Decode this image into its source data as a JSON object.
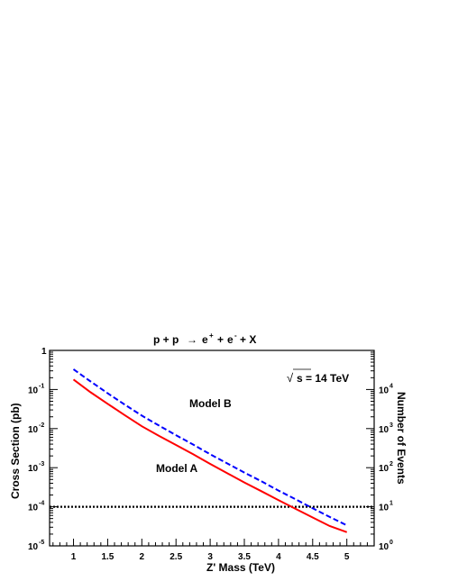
{
  "chart_data": {
    "type": "line",
    "title_parts": {
      "lhs": "p + p",
      "arrow": "→",
      "e1": "e",
      "e1_sup": "+",
      "plus1": "+",
      "e2": "e",
      "e2_sup": "-",
      "rhs": "+ X"
    },
    "annotation": {
      "sqrt": "√",
      "text": "s = 14 TeV"
    },
    "xlabel": "Z'  Mass (TeV)",
    "ylabel": "Cross Section (pb)",
    "y2label": "Number of Events",
    "xlim": [
      0.65,
      5.4
    ],
    "ylim": [
      1e-05,
      1
    ],
    "yscale": "log",
    "x_ticks": [
      "1",
      "1.5",
      "2",
      "2.5",
      "3",
      "3.5",
      "4",
      "4.5",
      "5"
    ],
    "y_ticks_left": [
      {
        "base": "10",
        "exp": "-5"
      },
      {
        "base": "10",
        "exp": "-4"
      },
      {
        "base": "10",
        "exp": "-3"
      },
      {
        "base": "10",
        "exp": "-2"
      },
      {
        "base": "10",
        "exp": "-1"
      },
      {
        "base": "1",
        "exp": ""
      }
    ],
    "y_ticks_right": [
      {
        "base": "10",
        "exp": "0"
      },
      {
        "base": "10",
        "exp": "1"
      },
      {
        "base": "10",
        "exp": "2"
      },
      {
        "base": "10",
        "exp": "3"
      },
      {
        "base": "10",
        "exp": "4"
      }
    ],
    "series": [
      {
        "name": "Model A",
        "color": "#ff0000",
        "style": "solid",
        "x": [
          1.0,
          1.25,
          1.5,
          1.75,
          2.0,
          2.25,
          2.5,
          2.75,
          3.0,
          3.25,
          3.5,
          3.75,
          4.0,
          4.25,
          4.5,
          4.75,
          5.0
        ],
        "y": [
          0.18,
          0.085,
          0.043,
          0.022,
          0.0115,
          0.0065,
          0.0038,
          0.0022,
          0.00125,
          0.00072,
          0.00042,
          0.00025,
          0.000148,
          8.85e-05,
          5.32e-05,
          3.21e-05,
          2.24e-05
        ]
      },
      {
        "name": "Model B",
        "color": "#0000ff",
        "style": "dashed",
        "x": [
          1.0,
          1.25,
          1.5,
          1.75,
          2.0,
          2.25,
          2.5,
          2.75,
          3.0,
          3.25,
          3.5,
          3.75,
          4.0,
          4.25,
          4.5,
          4.75,
          5.0
        ],
        "y": [
          0.33,
          0.16,
          0.08,
          0.041,
          0.0215,
          0.012,
          0.0068,
          0.0039,
          0.0022,
          0.00128,
          0.00075,
          0.00045,
          0.00026,
          0.000155,
          9.2e-05,
          5.5e-05,
          3.35e-05
        ]
      }
    ],
    "reference_line": {
      "y": 0.0001,
      "color": "#000000",
      "style": "dotted"
    }
  }
}
